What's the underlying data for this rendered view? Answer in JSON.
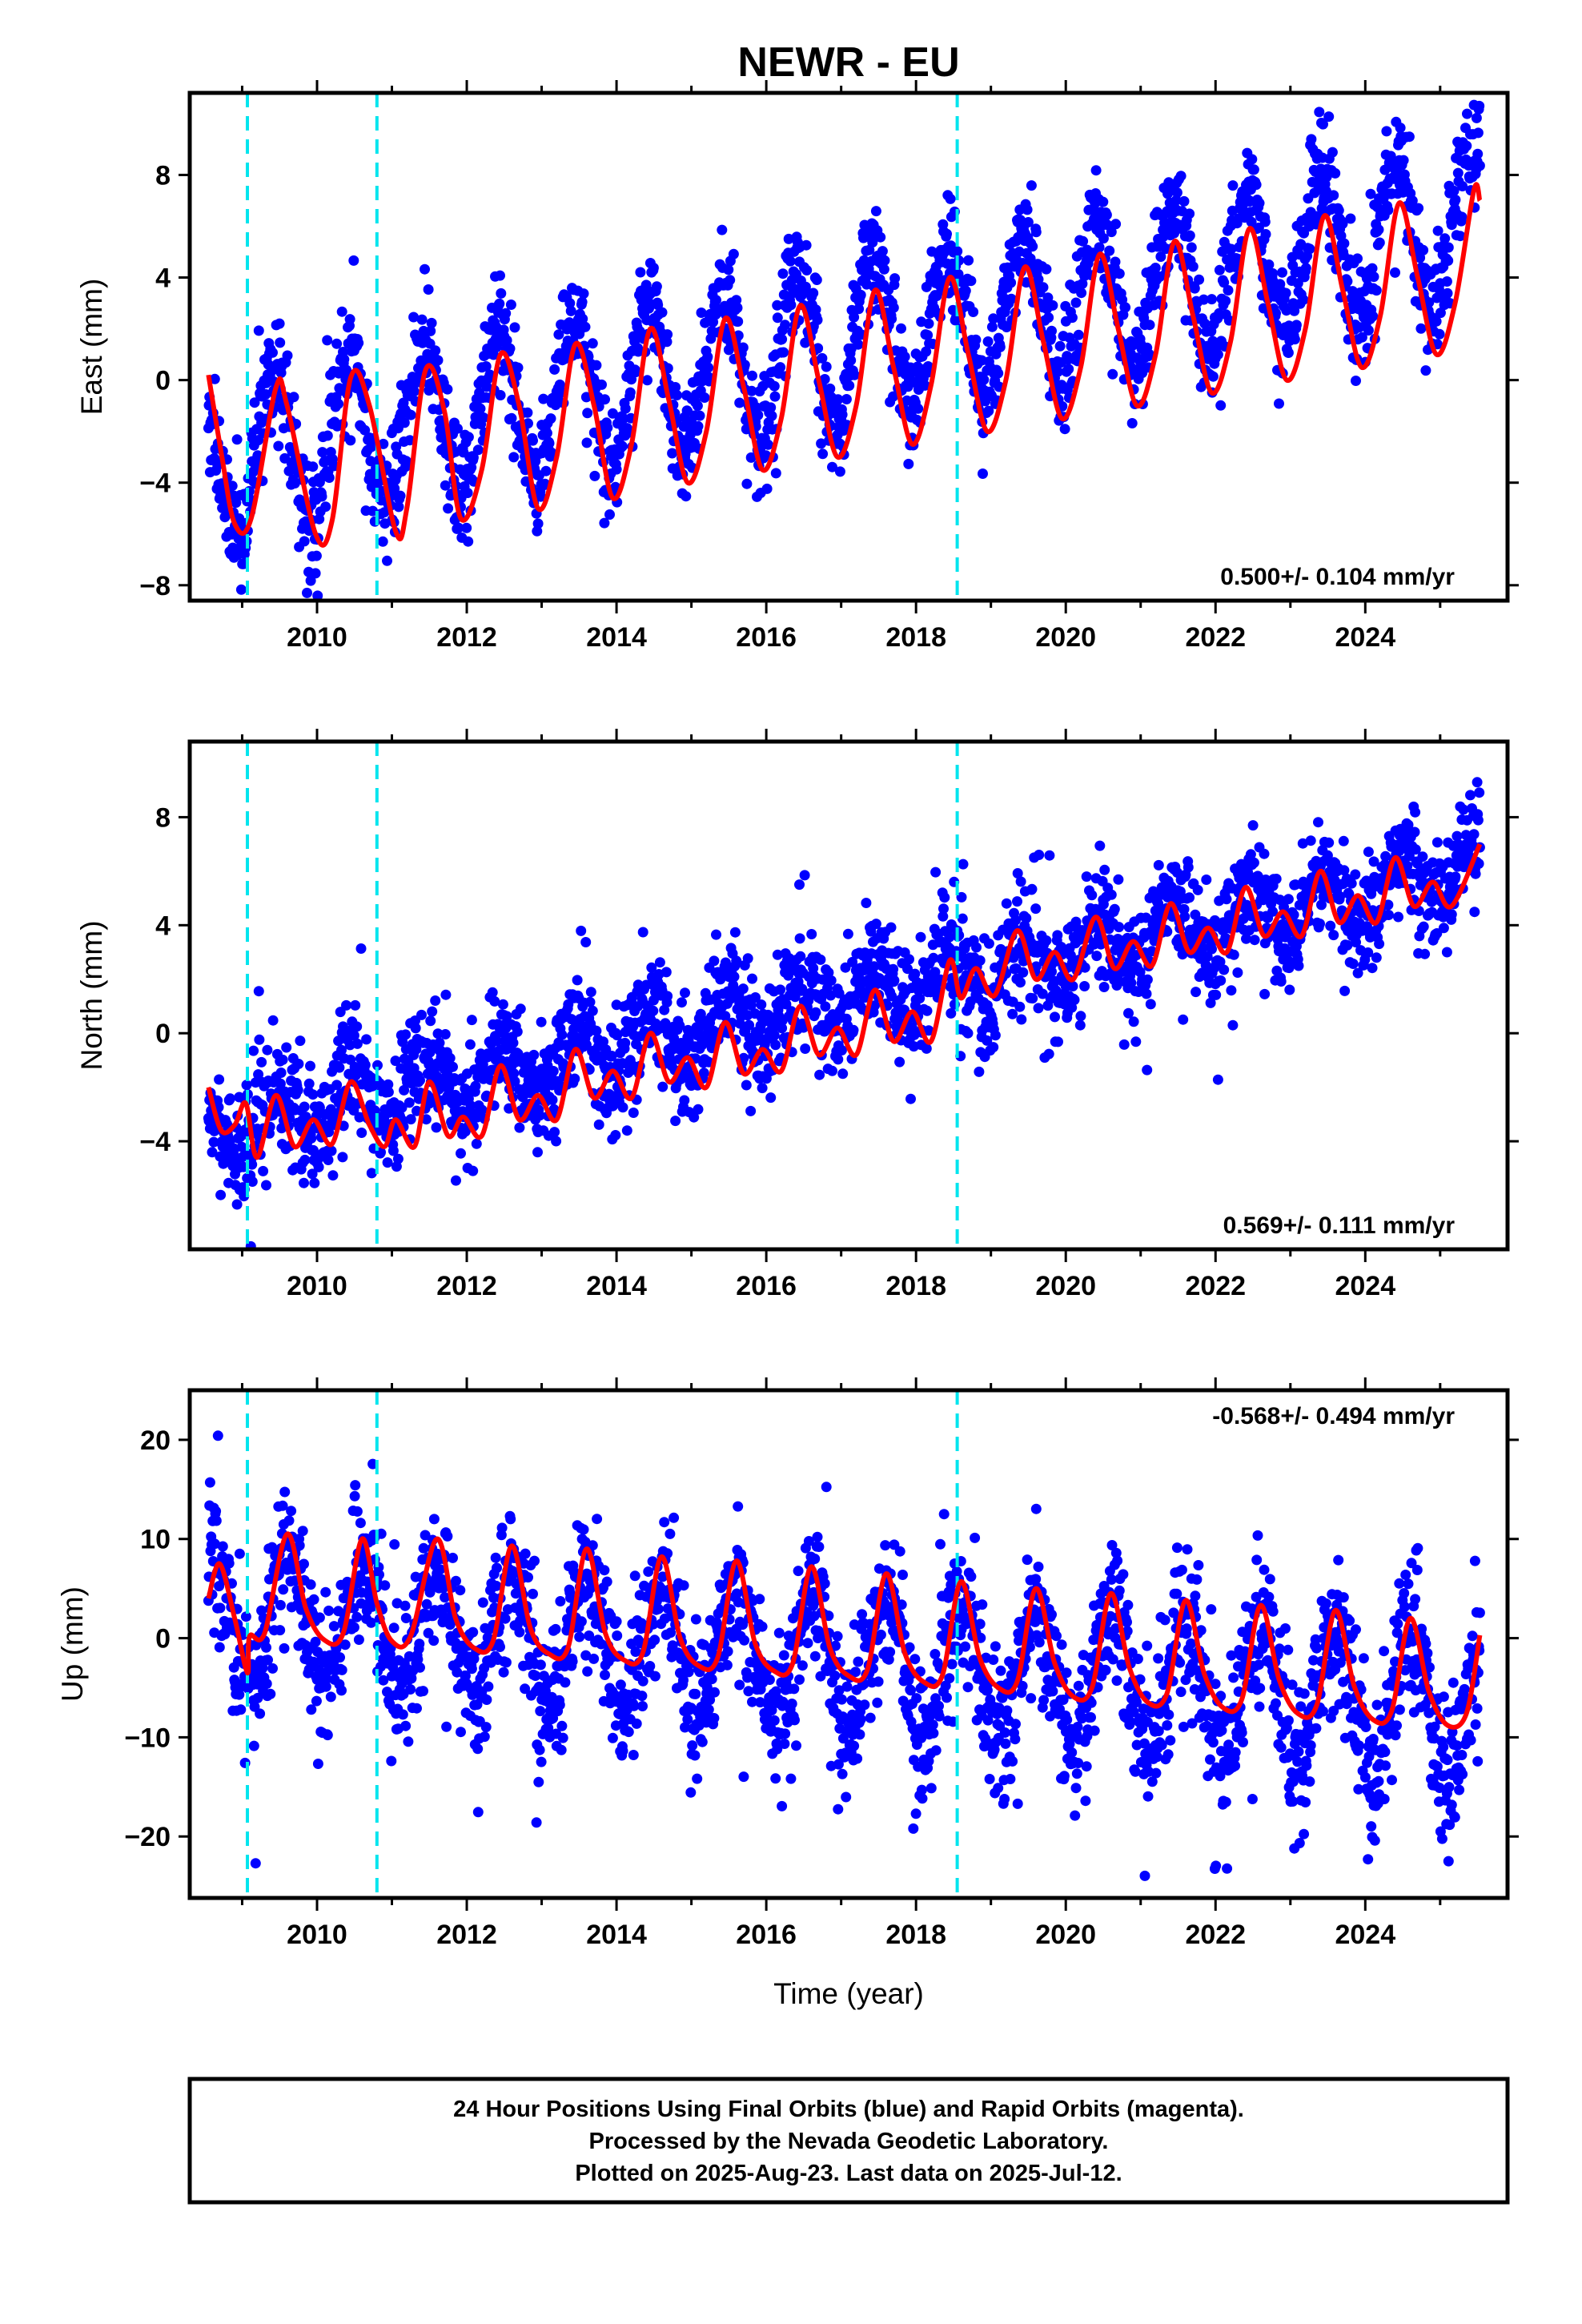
{
  "title": "NEWR - EU",
  "xlabel": "Time (year)",
  "footer": {
    "line1": "24 Hour Positions Using Final Orbits (blue) and Rapid Orbits (magenta).",
    "line2": "Processed by the Nevada Geodetic Laboratory.",
    "line3": "Plotted on 2025-Aug-23. Last data on 2025-Jul-12."
  },
  "colors": {
    "points": "#0000ff",
    "model": "#ff0000",
    "steps": "#00e5ee",
    "frame": "#000000"
  },
  "chart_data": [
    {
      "type": "scatter",
      "component": "East",
      "ylabel": "East (mm)",
      "rate_text": "0.500+/- 0.104 mm/yr",
      "xlim": [
        2008.3,
        2025.9
      ],
      "ylim": [
        -8.6,
        11.2
      ],
      "xticks": [
        2010,
        2012,
        2014,
        2016,
        2018,
        2020,
        2022,
        2024
      ],
      "yticks": [
        -8,
        -4,
        0,
        4,
        8
      ],
      "step_lines": [
        2009.07,
        2010.8,
        2018.55
      ],
      "data_span": [
        2008.55,
        2025.53
      ],
      "model": {
        "points": [
          [
            2008.55,
            0.2
          ],
          [
            2008.73,
            -3.0
          ],
          [
            2008.9,
            -5.6
          ],
          [
            2009.12,
            -5.4
          ],
          [
            2009.45,
            -0.3
          ],
          [
            2009.6,
            -1.0
          ],
          [
            2009.98,
            -6.0
          ],
          [
            2010.2,
            -5.5
          ],
          [
            2010.45,
            0.1
          ],
          [
            2010.7,
            -1.0
          ],
          [
            2011.05,
            -5.9
          ],
          [
            2011.2,
            -5.0
          ],
          [
            2011.45,
            0.4
          ],
          [
            2011.7,
            -1.2
          ],
          [
            2011.92,
            -5.4
          ],
          [
            2012.2,
            -3.5
          ],
          [
            2012.45,
            1.0
          ],
          [
            2012.7,
            -1.0
          ],
          [
            2012.95,
            -5.0
          ],
          [
            2013.2,
            -3.0
          ],
          [
            2013.45,
            1.4
          ],
          [
            2013.7,
            -1.0
          ],
          [
            2013.95,
            -4.6
          ],
          [
            2014.2,
            -2.5
          ],
          [
            2014.45,
            2.0
          ],
          [
            2014.7,
            -0.8
          ],
          [
            2014.95,
            -4.0
          ],
          [
            2015.2,
            -2.0
          ],
          [
            2015.45,
            2.4
          ],
          [
            2015.7,
            -0.3
          ],
          [
            2015.95,
            -3.5
          ],
          [
            2016.2,
            -1.5
          ],
          [
            2016.45,
            2.9
          ],
          [
            2016.7,
            0.0
          ],
          [
            2016.95,
            -3.0
          ],
          [
            2017.2,
            -1.0
          ],
          [
            2017.45,
            3.5
          ],
          [
            2017.7,
            0.5
          ],
          [
            2017.95,
            -2.5
          ],
          [
            2018.2,
            -0.2
          ],
          [
            2018.45,
            4.0
          ],
          [
            2018.7,
            1.0
          ],
          [
            2018.95,
            -2.0
          ],
          [
            2019.2,
            0.0
          ],
          [
            2019.45,
            4.4
          ],
          [
            2019.7,
            1.5
          ],
          [
            2019.95,
            -1.5
          ],
          [
            2020.2,
            0.5
          ],
          [
            2020.45,
            4.9
          ],
          [
            2020.7,
            2.0
          ],
          [
            2020.95,
            -1.0
          ],
          [
            2021.2,
            1.0
          ],
          [
            2021.45,
            5.4
          ],
          [
            2021.7,
            2.5
          ],
          [
            2021.95,
            -0.5
          ],
          [
            2022.2,
            1.5
          ],
          [
            2022.45,
            5.9
          ],
          [
            2022.7,
            3.0
          ],
          [
            2022.95,
            0.0
          ],
          [
            2023.2,
            2.0
          ],
          [
            2023.45,
            6.4
          ],
          [
            2023.7,
            3.5
          ],
          [
            2023.95,
            0.5
          ],
          [
            2024.2,
            2.5
          ],
          [
            2024.45,
            6.9
          ],
          [
            2024.7,
            4.0
          ],
          [
            2024.95,
            1.0
          ],
          [
            2025.2,
            3.0
          ],
          [
            2025.45,
            7.4
          ],
          [
            2025.53,
            7.0
          ]
        ]
      },
      "scatter_model": {
        "base": -3.2,
        "trend": 0.55,
        "amplitude": 3.0,
        "phase_peak": 0.42,
        "noise": 1.1,
        "outlier_fraction": 0.02,
        "outlier_spread": 2.5,
        "count": 2400
      }
    },
    {
      "type": "scatter",
      "component": "North",
      "ylabel": "North (mm)",
      "rate_text": "0.569+/- 0.111 mm/yr",
      "xlim": [
        2008.3,
        2025.9
      ],
      "ylim": [
        -8.0,
        10.8
      ],
      "xticks": [
        2010,
        2012,
        2014,
        2016,
        2018,
        2020,
        2022,
        2024
      ],
      "yticks": [
        -4,
        0,
        4,
        8
      ],
      "step_lines": [
        2009.07,
        2010.8,
        2018.55
      ],
      "data_span": [
        2008.55,
        2025.53
      ],
      "model": {
        "points": [
          [
            2008.55,
            -2.0
          ],
          [
            2008.72,
            -3.6
          ],
          [
            2008.9,
            -3.4
          ],
          [
            2009.05,
            -2.6
          ],
          [
            2009.2,
            -4.6
          ],
          [
            2009.45,
            -2.3
          ],
          [
            2009.7,
            -4.2
          ],
          [
            2009.95,
            -3.2
          ],
          [
            2010.2,
            -4.1
          ],
          [
            2010.45,
            -1.8
          ],
          [
            2010.7,
            -3.4
          ],
          [
            2010.9,
            -4.2
          ],
          [
            2011.05,
            -3.2
          ],
          [
            2011.3,
            -4.2
          ],
          [
            2011.5,
            -1.8
          ],
          [
            2011.75,
            -3.8
          ],
          [
            2011.95,
            -3.1
          ],
          [
            2012.2,
            -3.8
          ],
          [
            2012.45,
            -1.2
          ],
          [
            2012.7,
            -3.2
          ],
          [
            2012.95,
            -2.3
          ],
          [
            2013.2,
            -3.2
          ],
          [
            2013.45,
            -0.6
          ],
          [
            2013.7,
            -2.4
          ],
          [
            2013.95,
            -1.4
          ],
          [
            2014.2,
            -2.4
          ],
          [
            2014.45,
            0.0
          ],
          [
            2014.7,
            -1.8
          ],
          [
            2014.95,
            -0.9
          ],
          [
            2015.2,
            -2.0
          ],
          [
            2015.45,
            0.4
          ],
          [
            2015.7,
            -1.5
          ],
          [
            2015.95,
            -0.6
          ],
          [
            2016.2,
            -1.4
          ],
          [
            2016.45,
            1.0
          ],
          [
            2016.7,
            -0.8
          ],
          [
            2016.95,
            0.2
          ],
          [
            2017.2,
            -0.8
          ],
          [
            2017.45,
            1.6
          ],
          [
            2017.7,
            -0.3
          ],
          [
            2017.95,
            0.8
          ],
          [
            2018.2,
            -0.3
          ],
          [
            2018.45,
            2.7
          ],
          [
            2018.6,
            1.3
          ],
          [
            2018.8,
            2.4
          ],
          [
            2019.05,
            1.4
          ],
          [
            2019.35,
            3.8
          ],
          [
            2019.6,
            2.0
          ],
          [
            2019.85,
            3.0
          ],
          [
            2020.1,
            2.0
          ],
          [
            2020.4,
            4.3
          ],
          [
            2020.65,
            2.4
          ],
          [
            2020.9,
            3.4
          ],
          [
            2021.15,
            2.5
          ],
          [
            2021.4,
            4.8
          ],
          [
            2021.65,
            3.0
          ],
          [
            2021.9,
            3.9
          ],
          [
            2022.15,
            3.0
          ],
          [
            2022.4,
            5.4
          ],
          [
            2022.65,
            3.6
          ],
          [
            2022.9,
            4.5
          ],
          [
            2023.15,
            3.6
          ],
          [
            2023.4,
            6.0
          ],
          [
            2023.65,
            4.1
          ],
          [
            2023.9,
            5.1
          ],
          [
            2024.15,
            4.1
          ],
          [
            2024.4,
            6.5
          ],
          [
            2024.65,
            4.7
          ],
          [
            2024.9,
            5.6
          ],
          [
            2025.15,
            4.7
          ],
          [
            2025.53,
            7.0
          ]
        ]
      },
      "scatter_model": {
        "base": -3.6,
        "trend": 0.57,
        "amplitude": 1.1,
        "phase_peak": 0.45,
        "noise": 1.05,
        "outlier_fraction": 0.02,
        "outlier_spread": 2.5,
        "count": 2400
      }
    },
    {
      "type": "scatter",
      "component": "Up",
      "ylabel": "Up (mm)",
      "rate_text": "-0.568+/- 0.494 mm/yr",
      "xlim": [
        2008.3,
        2025.9
      ],
      "ylim": [
        -26.2,
        25.0
      ],
      "xticks": [
        2010,
        2012,
        2014,
        2016,
        2018,
        2020,
        2022,
        2024
      ],
      "yticks": [
        -20,
        -10,
        0,
        10,
        20
      ],
      "step_lines": [
        2009.07,
        2010.8,
        2018.55
      ],
      "data_span": [
        2008.55,
        2025.53
      ],
      "model": {
        "points": [
          [
            2008.55,
            4.0
          ],
          [
            2008.7,
            7.5
          ],
          [
            2008.9,
            2.0
          ],
          [
            2009.07,
            -3.5
          ],
          [
            2009.1,
            0.2
          ],
          [
            2009.3,
            0.5
          ],
          [
            2009.6,
            10.5
          ],
          [
            2009.85,
            3.0
          ],
          [
            2010.1,
            -0.2
          ],
          [
            2010.35,
            0.5
          ],
          [
            2010.6,
            10.0
          ],
          [
            2010.8,
            3.5
          ],
          [
            2011.0,
            -0.3
          ],
          [
            2011.25,
            0.2
          ],
          [
            2011.6,
            10.0
          ],
          [
            2011.85,
            2.0
          ],
          [
            2012.1,
            -1.0
          ],
          [
            2012.35,
            -0.3
          ],
          [
            2012.6,
            9.3
          ],
          [
            2012.85,
            1.0
          ],
          [
            2013.1,
            -1.6
          ],
          [
            2013.35,
            -1.0
          ],
          [
            2013.6,
            9.0
          ],
          [
            2013.85,
            0.5
          ],
          [
            2014.1,
            -2.2
          ],
          [
            2014.35,
            -1.5
          ],
          [
            2014.6,
            8.2
          ],
          [
            2014.85,
            0.0
          ],
          [
            2015.1,
            -2.8
          ],
          [
            2015.35,
            -2.0
          ],
          [
            2015.6,
            7.8
          ],
          [
            2015.85,
            -0.5
          ],
          [
            2016.1,
            -3.3
          ],
          [
            2016.35,
            -2.6
          ],
          [
            2016.6,
            7.2
          ],
          [
            2016.85,
            -1.0
          ],
          [
            2017.1,
            -3.8
          ],
          [
            2017.35,
            -3.2
          ],
          [
            2017.6,
            6.5
          ],
          [
            2017.85,
            -1.5
          ],
          [
            2018.1,
            -4.4
          ],
          [
            2018.35,
            -3.8
          ],
          [
            2018.6,
            5.7
          ],
          [
            2018.85,
            -2.0
          ],
          [
            2019.1,
            -5.0
          ],
          [
            2019.35,
            -4.4
          ],
          [
            2019.6,
            5.0
          ],
          [
            2019.85,
            -2.5
          ],
          [
            2020.1,
            -5.9
          ],
          [
            2020.35,
            -5.0
          ],
          [
            2020.6,
            4.5
          ],
          [
            2020.85,
            -3.0
          ],
          [
            2021.1,
            -6.5
          ],
          [
            2021.35,
            -5.6
          ],
          [
            2021.6,
            3.8
          ],
          [
            2021.85,
            -3.6
          ],
          [
            2022.1,
            -7.0
          ],
          [
            2022.35,
            -6.2
          ],
          [
            2022.6,
            3.3
          ],
          [
            2022.85,
            -4.2
          ],
          [
            2023.1,
            -7.6
          ],
          [
            2023.35,
            -6.8
          ],
          [
            2023.6,
            2.8
          ],
          [
            2023.85,
            -4.8
          ],
          [
            2024.1,
            -8.2
          ],
          [
            2024.35,
            -7.4
          ],
          [
            2024.6,
            2.0
          ],
          [
            2024.85,
            -5.4
          ],
          [
            2025.1,
            -8.8
          ],
          [
            2025.35,
            -7.6
          ],
          [
            2025.53,
            0.3
          ]
        ]
      },
      "scatter_model": {
        "base": 2.5,
        "trend": -0.57,
        "amplitude": 6.5,
        "phase_peak": 0.6,
        "noise": 3.6,
        "outlier_fraction": 0.03,
        "outlier_spread": 8.0,
        "count": 2400
      }
    }
  ]
}
